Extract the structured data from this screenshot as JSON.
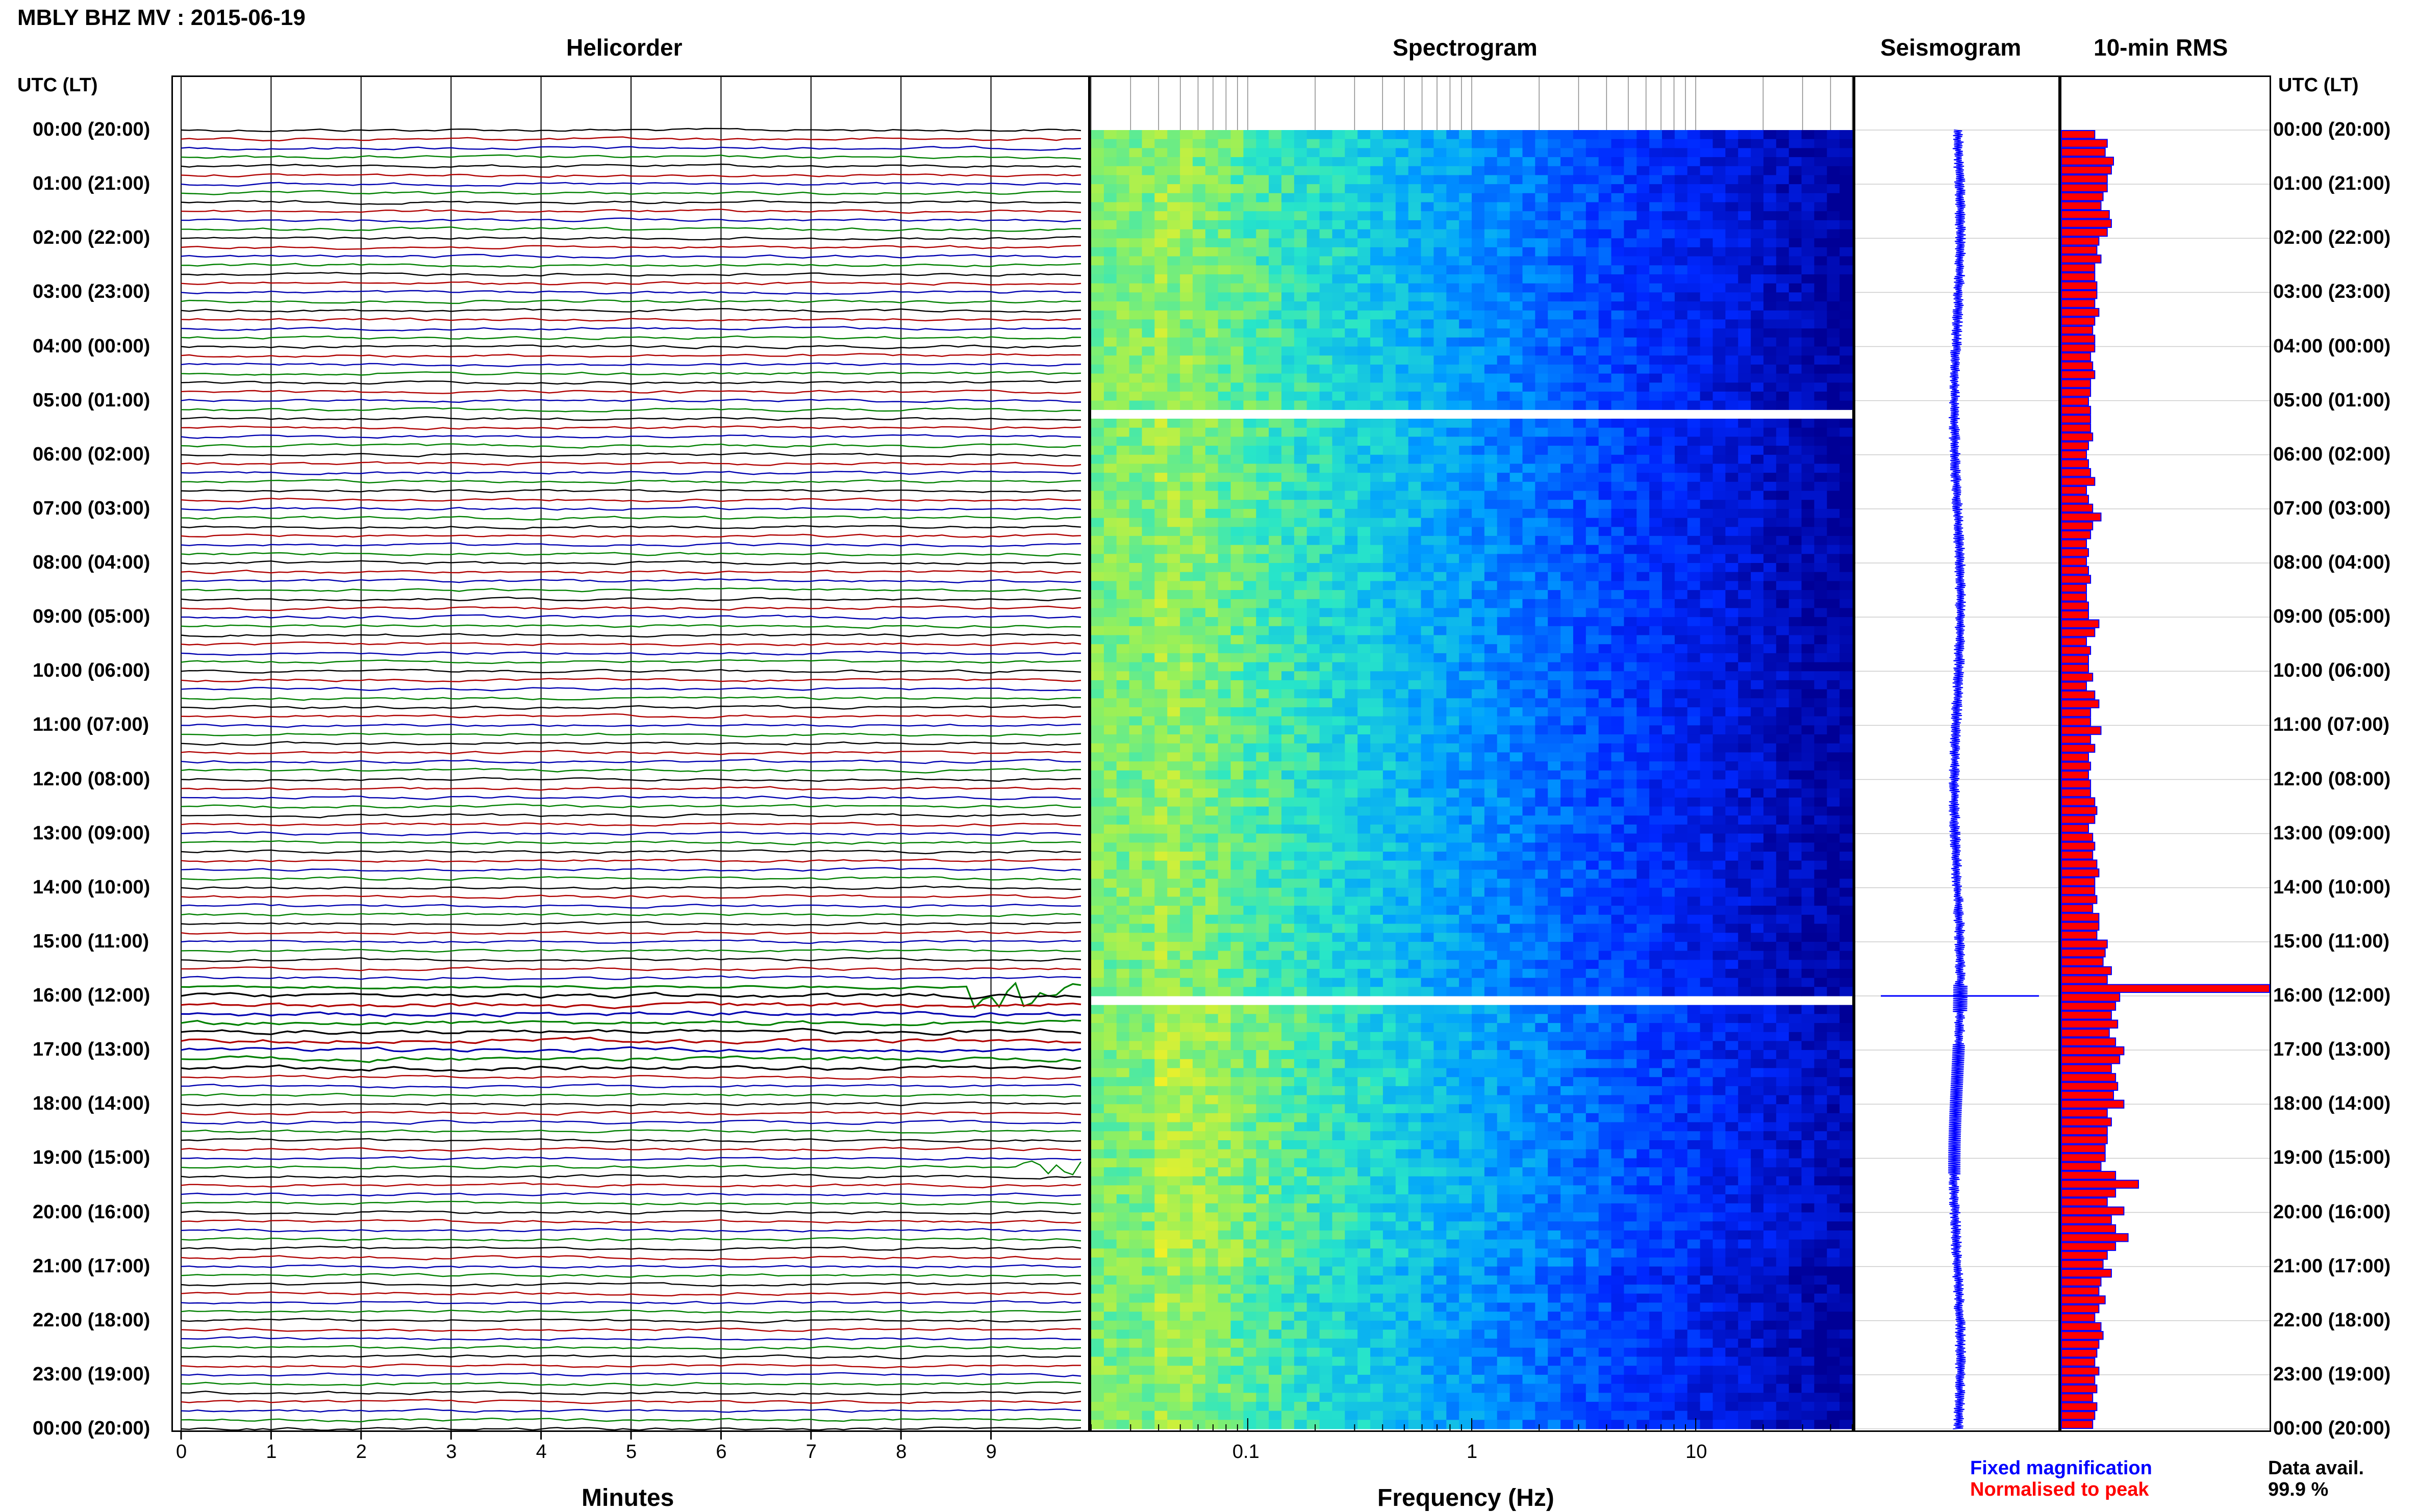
{
  "title": "MBLY BHZ MV : 2015-06-19",
  "panels": {
    "helicorder": "Helicorder",
    "spectrogram": "Spectrogram",
    "seismogram": "Seismogram",
    "rms": "10-min RMS"
  },
  "time_axis_label": "UTC (LT)",
  "time_labels": [
    "00:00 (20:00)",
    "01:00 (21:00)",
    "02:00 (22:00)",
    "03:00 (23:00)",
    "04:00 (00:00)",
    "05:00 (01:00)",
    "06:00 (02:00)",
    "07:00 (03:00)",
    "08:00 (04:00)",
    "09:00 (05:00)",
    "10:00 (06:00)",
    "11:00 (07:00)",
    "12:00 (08:00)",
    "13:00 (09:00)",
    "14:00 (10:00)",
    "15:00 (11:00)",
    "16:00 (12:00)",
    "17:00 (13:00)",
    "18:00 (14:00)",
    "19:00 (15:00)",
    "20:00 (16:00)",
    "21:00 (17:00)",
    "22:00 (18:00)",
    "23:00 (19:00)",
    "00:00 (20:00)"
  ],
  "minutes_label": "Minutes",
  "minute_ticks": [
    "0",
    "1",
    "2",
    "3",
    "4",
    "5",
    "6",
    "7",
    "8",
    "9"
  ],
  "frequency_label": "Frequency (Hz)",
  "frequency_ticks": [
    "0.1",
    "1",
    "10"
  ],
  "legend": {
    "fixed": "Fixed magnification",
    "fixed_color": "#0000ff",
    "normalised": "Normalised to peak",
    "normalised_color": "#ff0000"
  },
  "data_avail": {
    "label": "Data avail.",
    "value": "99.9 %"
  },
  "colors": {
    "trace_cycle": [
      "#000000",
      "#b00000",
      "#0000b0",
      "#008000"
    ],
    "rms_fill": "#ff0000",
    "rms_edge": "#0000ff",
    "seismogram": "#0000ff"
  },
  "chart_data": [
    {
      "type": "line",
      "name": "helicorder",
      "x_unit": "minutes",
      "xlim": [
        0,
        10
      ],
      "rows_per_hour": 6,
      "rows": 144,
      "events": [
        {
          "utc": "15:50",
          "start_min": 8.75,
          "end_min": 10.0,
          "amplitude": "large"
        },
        {
          "utc": "19:10",
          "start_min": 9.35,
          "end_min": 10.0,
          "amplitude": "medium"
        },
        {
          "utc": "16:00",
          "start_min": 0.0,
          "end_min": 10.0,
          "amplitude": "elevated"
        }
      ]
    },
    {
      "type": "heatmap",
      "name": "spectrogram",
      "x_scale": "log",
      "xlim": [
        0.02,
        50
      ],
      "xlabel": "Frequency (Hz)",
      "xticks": [
        0.1,
        1,
        10
      ],
      "gaps_utc": [
        "05:10",
        "16:00"
      ]
    },
    {
      "type": "line",
      "name": "seismogram",
      "spike_utc": "16:00"
    },
    {
      "type": "bar",
      "name": "10-min RMS",
      "orientation": "horizontal",
      "bins_per_hour": 6,
      "values": [
        0.16,
        0.22,
        0.21,
        0.25,
        0.24,
        0.22,
        0.22,
        0.2,
        0.19,
        0.23,
        0.24,
        0.22,
        0.18,
        0.17,
        0.19,
        0.16,
        0.16,
        0.17,
        0.17,
        0.16,
        0.18,
        0.16,
        0.15,
        0.16,
        0.16,
        0.14,
        0.15,
        0.16,
        0.14,
        0.14,
        0.13,
        0.14,
        0.14,
        0.14,
        0.15,
        0.13,
        0.12,
        0.13,
        0.14,
        0.16,
        0.12,
        0.13,
        0.15,
        0.19,
        0.15,
        0.14,
        0.12,
        0.13,
        0.12,
        0.13,
        0.14,
        0.12,
        0.12,
        0.13,
        0.13,
        0.18,
        0.16,
        0.12,
        0.14,
        0.13,
        0.13,
        0.15,
        0.12,
        0.16,
        0.18,
        0.14,
        0.14,
        0.19,
        0.14,
        0.16,
        0.13,
        0.14,
        0.13,
        0.14,
        0.14,
        0.16,
        0.17,
        0.16,
        0.13,
        0.15,
        0.16,
        0.15,
        0.17,
        0.18,
        0.16,
        0.16,
        0.17,
        0.15,
        0.18,
        0.18,
        0.17,
        0.22,
        0.21,
        0.2,
        0.24,
        0.22,
        1.0,
        0.28,
        0.26,
        0.24,
        0.27,
        0.23,
        0.26,
        0.3,
        0.28,
        0.24,
        0.26,
        0.27,
        0.25,
        0.3,
        0.22,
        0.24,
        0.22,
        0.22,
        0.21,
        0.21,
        0.19,
        0.26,
        0.37,
        0.26,
        0.22,
        0.3,
        0.24,
        0.26,
        0.32,
        0.26,
        0.22,
        0.2,
        0.24,
        0.19,
        0.18,
        0.21,
        0.18,
        0.16,
        0.19,
        0.2,
        0.18,
        0.17,
        0.16,
        0.18,
        0.16,
        0.17,
        0.15,
        0.17,
        0.16,
        0.15
      ]
    }
  ]
}
